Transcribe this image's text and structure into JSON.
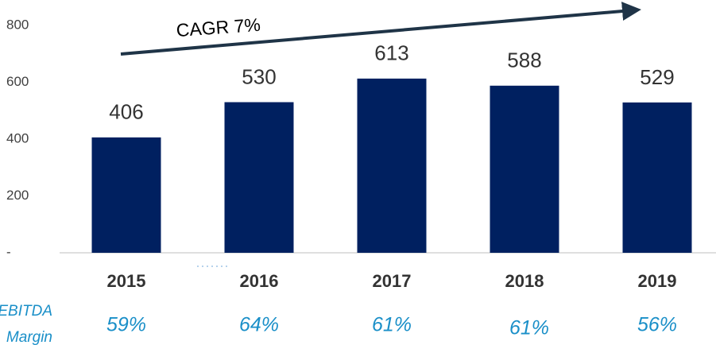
{
  "chart_data": {
    "type": "bar",
    "categories": [
      "2015",
      "2016",
      "2017",
      "2018",
      "2019"
    ],
    "values": [
      406,
      530,
      613,
      588,
      529
    ],
    "color": "#002060",
    "ylim": [
      0,
      800
    ],
    "yticks": [
      {
        "value": 0,
        "label": "-"
      },
      200,
      400,
      600,
      800
    ],
    "annotation": "CAGR  7%",
    "row_label": [
      "EBITDA",
      "Margin"
    ],
    "row_values": [
      "59%",
      "64%",
      "61%",
      "61%",
      "56%"
    ]
  }
}
